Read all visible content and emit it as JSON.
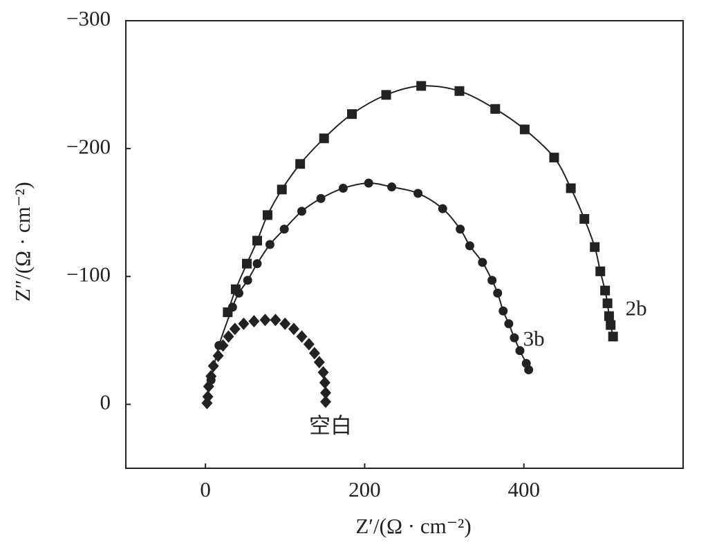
{
  "chart_data": {
    "type": "scatter",
    "x_label": "Z′/(Ω · cm⁻²)",
    "y_label": "Z″/(Ω · cm⁻²)",
    "xlim": [
      -100,
      600
    ],
    "ylim": [
      50,
      -300
    ],
    "xticks": [
      0,
      200,
      400
    ],
    "yticks": [
      {
        "value": -300,
        "label": "−300"
      },
      {
        "value": -200,
        "label": "−200"
      },
      {
        "value": -100,
        "label": "−100"
      },
      0
    ],
    "series": [
      {
        "name": "2b",
        "color": "#222222",
        "marker": "square",
        "line": true,
        "x": [
          28,
          38,
          52,
          65,
          78,
          96,
          119,
          149,
          184,
          227,
          271,
          319,
          364,
          401,
          438,
          459,
          476,
          489,
          496,
          502,
          505,
          507,
          509,
          512
        ],
        "values": [
          -72,
          -90,
          -110,
          -128,
          -148,
          -168,
          -188,
          -208,
          -227,
          -242,
          -249,
          -245,
          -231,
          -215,
          -193,
          -169,
          -145,
          -123,
          -104,
          -89,
          -79,
          -69,
          -62,
          -53
        ]
      },
      {
        "name": "3b",
        "color": "#222222",
        "marker": "circle",
        "line": true,
        "x": [
          7,
          17,
          34,
          42,
          53,
          65,
          81,
          99,
          121,
          145,
          173,
          205,
          234,
          267,
          298,
          320,
          332,
          348,
          360,
          367,
          374,
          381,
          388,
          395,
          403,
          406
        ],
        "values": [
          -19,
          -46,
          -76,
          -87,
          -97,
          -110,
          -125,
          -137,
          -151,
          -161,
          -169,
          -173,
          -170,
          -165,
          -153,
          -137,
          -124,
          -111,
          -97,
          -87,
          -73,
          -63,
          -52,
          -42,
          -32,
          -27
        ]
      },
      {
        "name": "空白",
        "color": "#222222",
        "marker": "diamond",
        "line": false,
        "x": [
          2,
          3,
          4,
          7,
          10,
          16,
          22,
          29,
          37,
          48,
          61,
          75,
          88,
          100,
          111,
          121,
          130,
          137,
          143,
          148,
          150,
          151,
          151
        ],
        "values": [
          -1,
          -6,
          -14,
          -22,
          -30,
          -38,
          -46,
          -53,
          -59,
          -63,
          -65,
          -66,
          -66,
          -63,
          -59,
          -53,
          -47,
          -40,
          -33,
          -25,
          -17,
          -9,
          -2
        ]
      }
    ]
  }
}
